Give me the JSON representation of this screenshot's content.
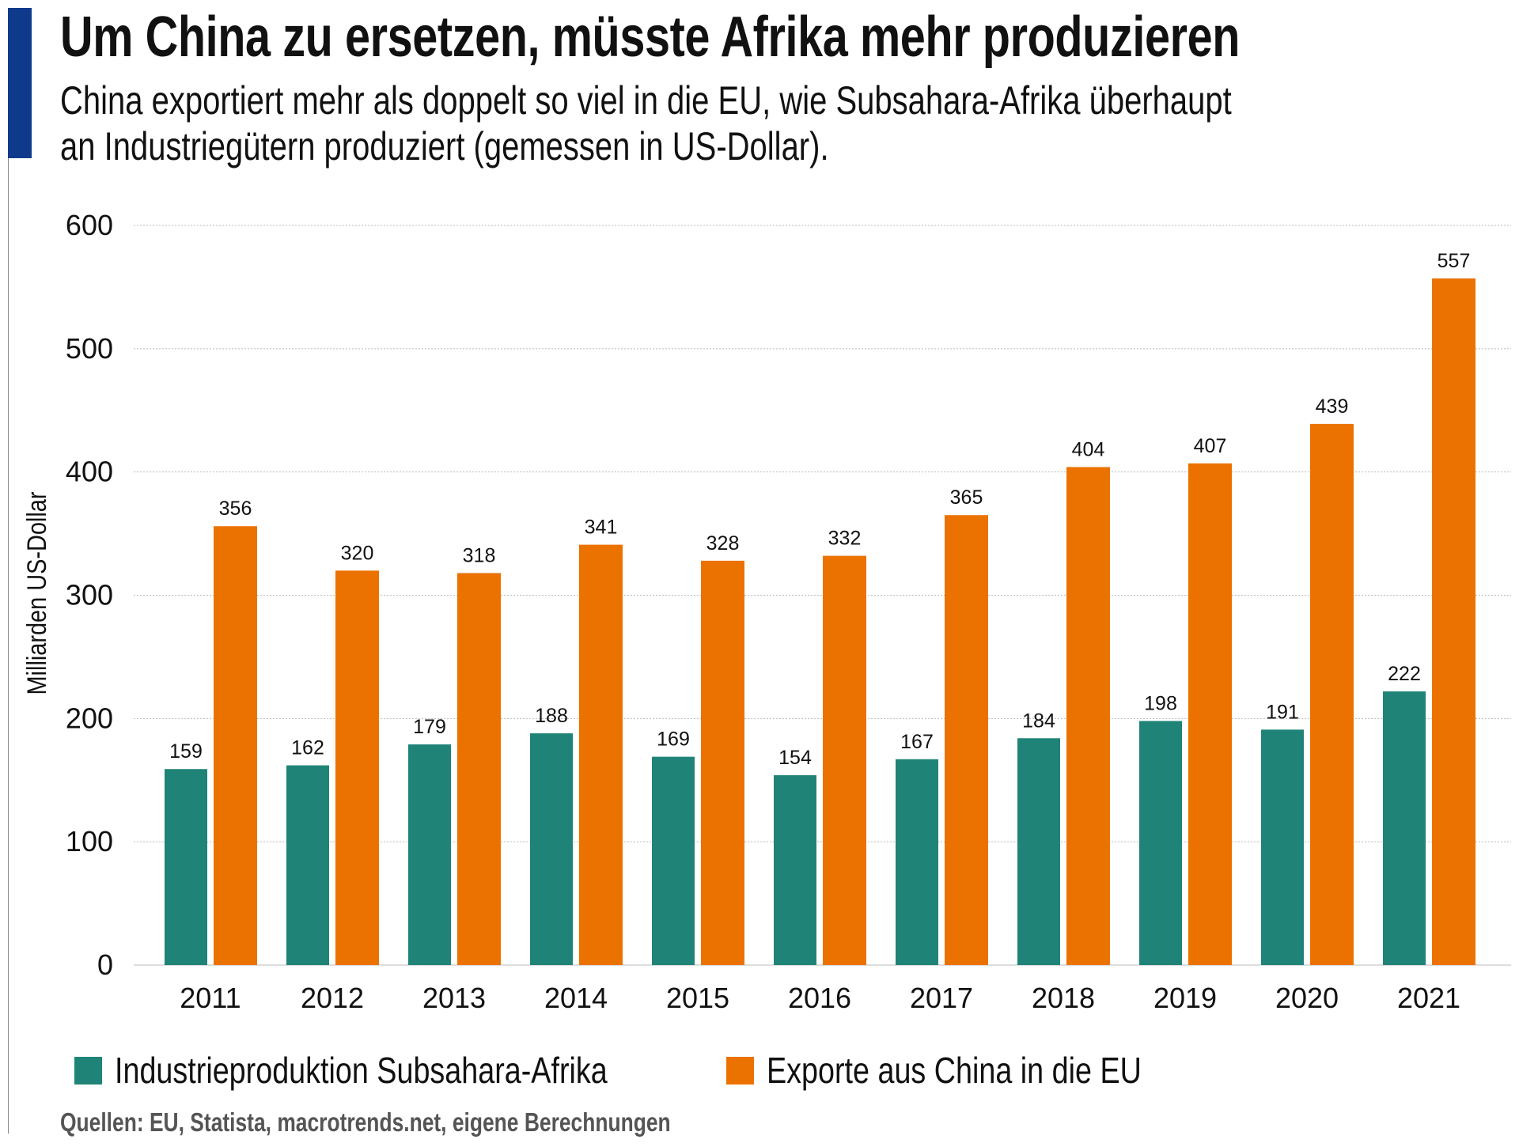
{
  "title": "Um China zu ersetzen, müsste Afrika mehr produzieren",
  "subtitle_lines": [
    "China exportiert mehr als doppelt so viel in die EU, wie Subsahara-Afrika überhaupt",
    "an Industriegütern produziert (gemessen in US-Dollar)."
  ],
  "source": "Quellen: EU, Statista, macrotrends.net, eigene Berechnungen",
  "colors": {
    "accent_bar": "#0f3a8c",
    "teal": "#1f8477",
    "orange": "#ec7200"
  },
  "chart_data": {
    "type": "bar",
    "title": "Um China zu ersetzen, müsste Afrika mehr produzieren",
    "xlabel": "",
    "ylabel": "Milliarden US-Dollar",
    "ylim": [
      0,
      600
    ],
    "yticks": [
      "0",
      "100",
      "200",
      "300",
      "400",
      "500",
      "600"
    ],
    "grid": true,
    "legend_placement": "bottom",
    "categories": [
      "2011",
      "2012",
      "2013",
      "2014",
      "2015",
      "2016",
      "2017",
      "2018",
      "2019",
      "2020",
      "2021"
    ],
    "series": [
      {
        "name": "Industrieproduktion Subsahara-Afrika",
        "color": "#1f8477",
        "values": [
          159,
          162,
          179,
          188,
          169,
          154,
          167,
          184,
          198,
          191,
          222
        ]
      },
      {
        "name": "Exporte aus China in die EU",
        "color": "#ec7200",
        "values": [
          356,
          320,
          318,
          341,
          328,
          332,
          365,
          404,
          407,
          439,
          557
        ]
      }
    ]
  }
}
